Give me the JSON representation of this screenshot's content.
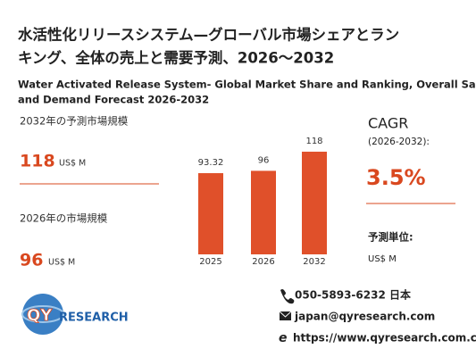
{
  "title_ja": [
    "水活性化リリースシステム—グローバル市場シェアとラン",
    "キング、全体の売上と需要予測、2026～2032"
  ],
  "title_en": [
    "Water Activated Release System- Global Market Share and Ranking, Overall Sales",
    "and Demand Forecast 2026-2032"
  ],
  "left": {
    "forecast_label": "2032年の予測市場規模",
    "forecast_value": "118",
    "forecast_unit": "US$ M",
    "current_label": "2026年の市場規模",
    "current_value": "96",
    "current_unit": "US$ M"
  },
  "right": {
    "cagr_label": "CAGR",
    "cagr_period": "(2026-2032):",
    "cagr_value": "3.5%",
    "unit_label": "予測単位:",
    "unit_value": "US$ M"
  },
  "contact": {
    "phone": "050-5893-6232 日本",
    "email": "japan@qyresearch.com",
    "website": "https://www.qyresearch.com.co.jp"
  },
  "logo": [
    "QY",
    "RESEARCH"
  ],
  "chart_data": {
    "type": "bar",
    "categories": [
      "2025",
      "2026",
      "2032"
    ],
    "values": [
      93.32,
      96,
      118
    ],
    "color": "#e0502a"
  }
}
